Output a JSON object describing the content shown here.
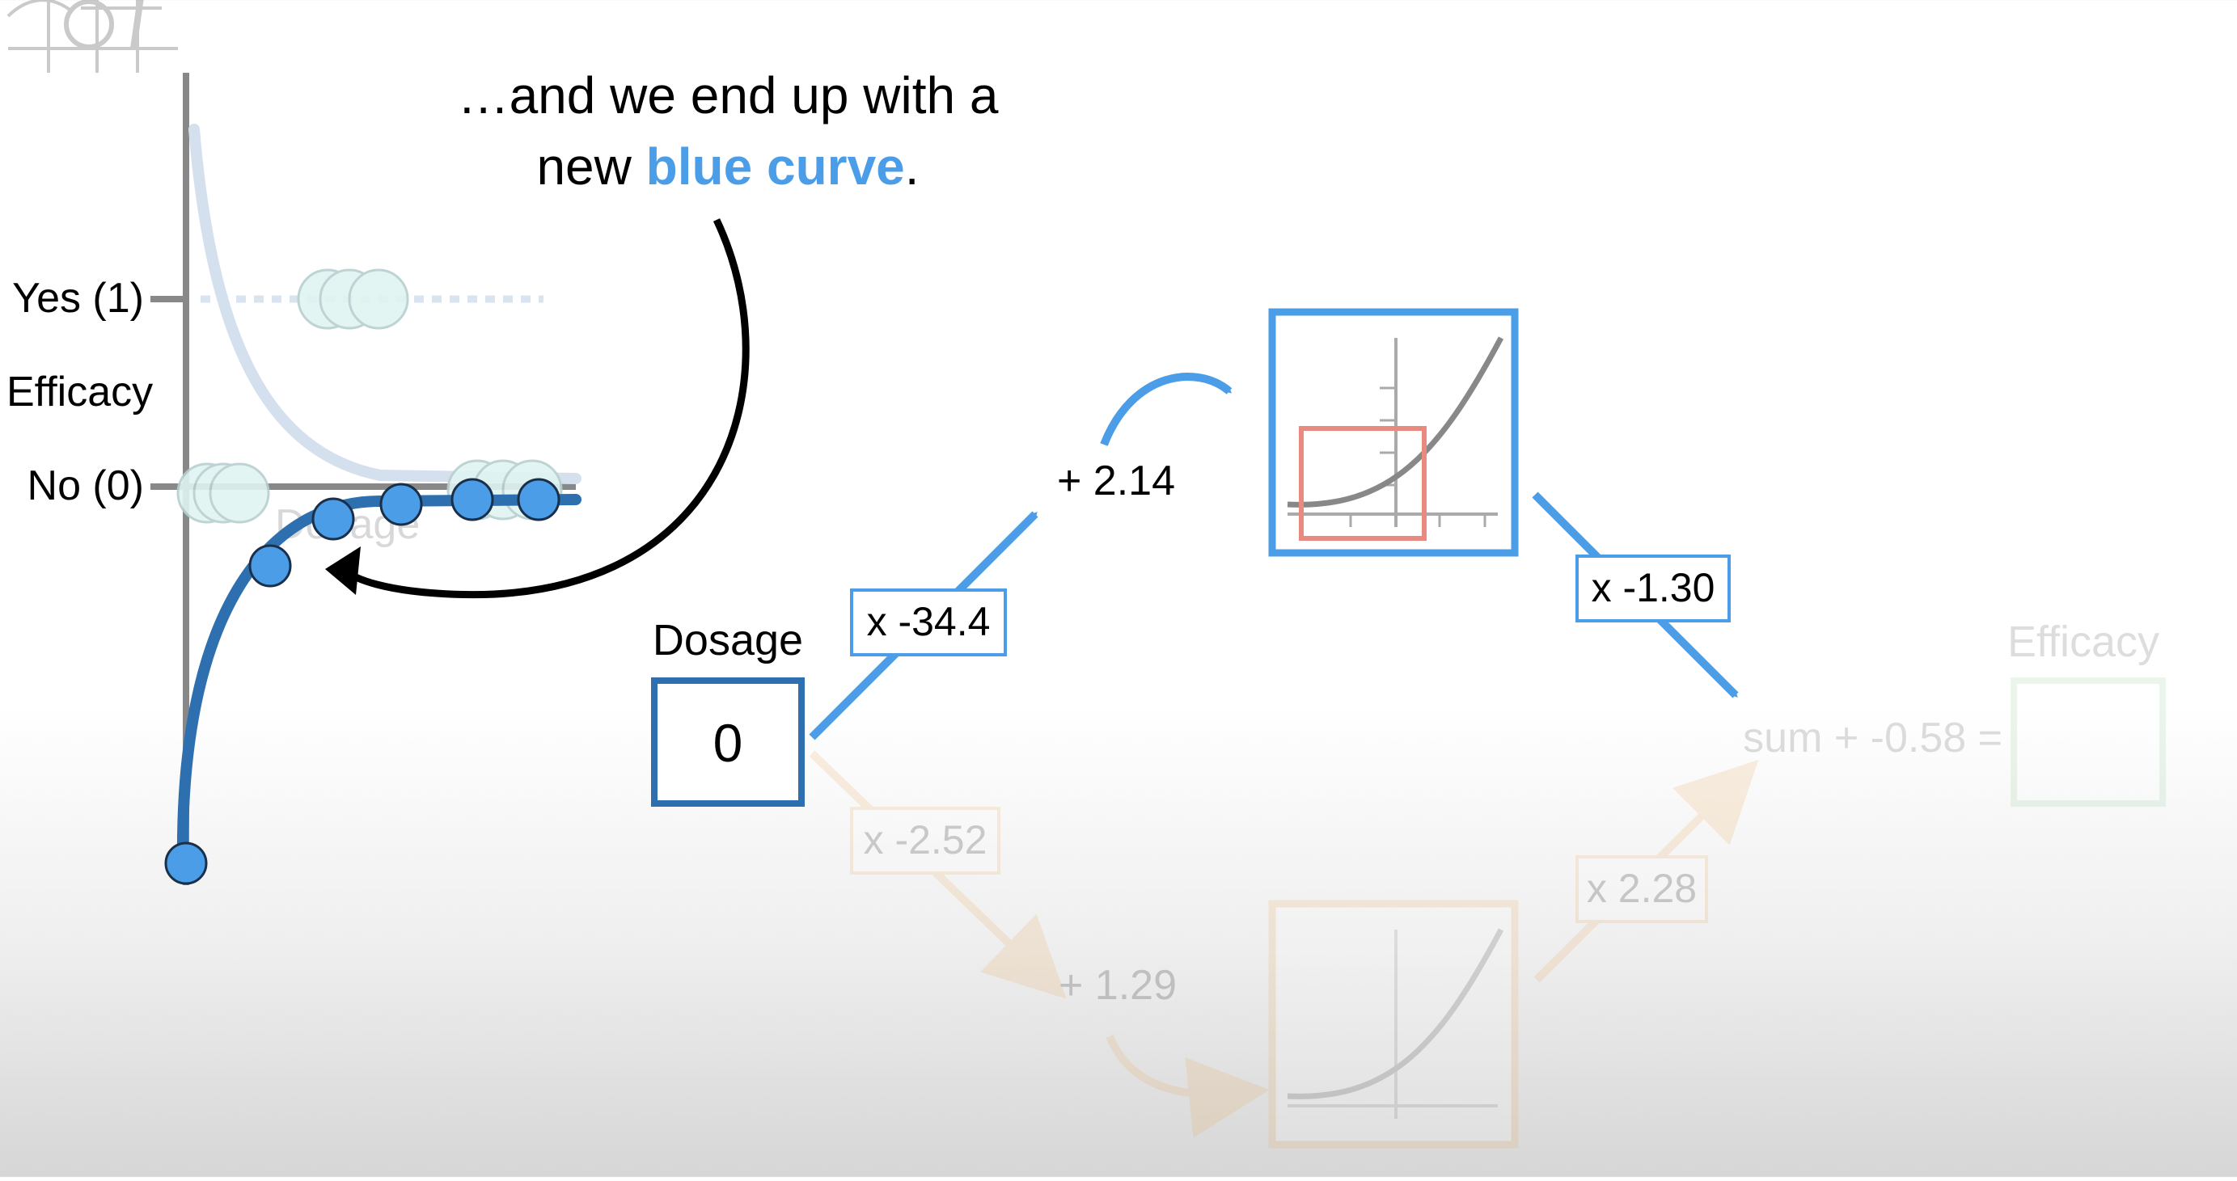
{
  "caption": {
    "line1": "…and we end up with a",
    "line2_prefix": "new ",
    "line2_highlight": "blue curve",
    "line2_suffix": "."
  },
  "graph": {
    "y_tick_yes": "Yes (1)",
    "y_tick_no": "No (0)",
    "y_axis_label": "Efficacy",
    "x_axis_label": "Dosage",
    "blue_curve_color": "#2e6fb0",
    "point_color": "#4a9de6",
    "faded_point_color": "#c8ecea"
  },
  "network": {
    "input_label": "Dosage",
    "input_value": "0",
    "top_weight": "x -34.4",
    "top_bias": "+ 2.14",
    "top_output_weight": "x -1.30",
    "bottom_weight": "x -2.52",
    "bottom_bias": "+ 1.29",
    "bottom_output_weight": "x 2.28",
    "sum_label": "sum + -0.58 =",
    "output_label": "Efficacy",
    "top_color": "#4a9de6",
    "bottom_color": "#e8a858",
    "output_color": "#6cb86c",
    "input_box_color": "#2e6fb0",
    "window_color": "#e88a80"
  }
}
